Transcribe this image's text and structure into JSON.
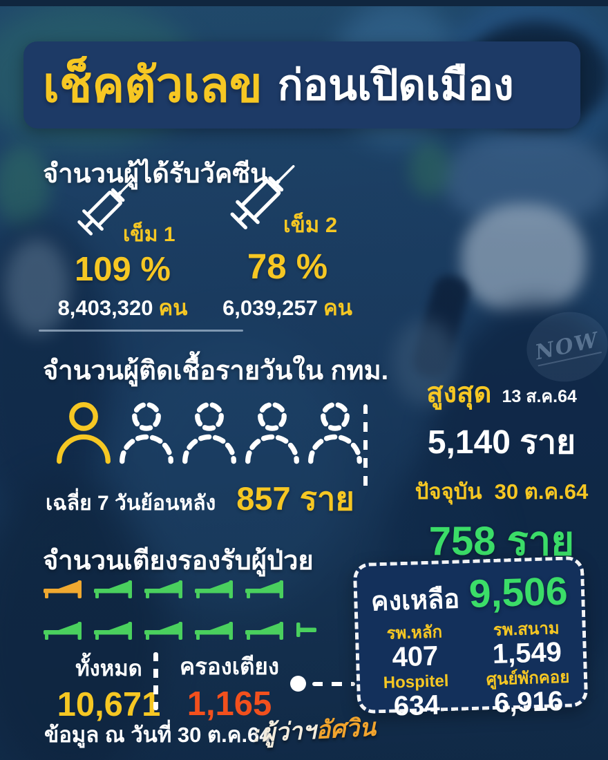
{
  "banner": {
    "title_highlight": "เช็คตัวเลข",
    "title_rest": "ก่อนเปิดเมือง"
  },
  "vaccine": {
    "heading": "จำนวนผู้ได้รับวัคซีน",
    "doses": [
      {
        "label": "เข็ม 1",
        "percent": "109 %",
        "count": "8,403,320",
        "unit": "คน"
      },
      {
        "label": "เข็ม 2",
        "percent": "78 %",
        "count": "6,039,257",
        "unit": "คน"
      }
    ]
  },
  "infections": {
    "heading": "จำนวนผู้ติดเชื้อรายวันใน กทม.",
    "pictogram": [
      "solid",
      "dashed",
      "dashed",
      "dashed",
      "dashed"
    ],
    "average_label": "เฉลี่ย 7 วันย้อนหลัง",
    "average_value": "857 ราย",
    "peak_label": "สูงสุด",
    "peak_date": "13 ส.ค.64",
    "peak_value": "5,140 ราย",
    "current_label": "ปัจจุบัน",
    "current_date": "30 ต.ค.64",
    "current_value": "758 ราย"
  },
  "beds": {
    "heading": "จำนวนเตียงรองรับผู้ป่วย",
    "pictogram_rows": [
      [
        "orange",
        "green",
        "green",
        "green",
        "green"
      ],
      [
        "green",
        "green",
        "green",
        "green",
        "green",
        "half"
      ]
    ],
    "total_label": "ทั้งหมด",
    "total_value": "10,671",
    "occupied_label": "ครองเตียง",
    "occupied_value": "1,165",
    "remaining_label": "คงเหลือ",
    "remaining_value": "9,506",
    "breakdown": [
      {
        "label": "รพ.หลัก",
        "value": "407"
      },
      {
        "label": "รพ.สนาม",
        "value": "1,549"
      },
      {
        "label": "Hospitel",
        "value": "634"
      },
      {
        "label": "ศูนย์พักคอย",
        "value": "6,916"
      }
    ]
  },
  "footer": {
    "data_date": "ข้อมูล ณ วันที่ 30 ต.ค.64",
    "signature_prefix": ":ผู้ว่าฯ",
    "signature_name": "อัศวิน"
  },
  "watermark": {
    "text": "NOW"
  },
  "colors": {
    "accent_yellow": "#f6c723",
    "accent_green": "#3bdd68",
    "accent_red": "#f2501d",
    "bed_green": "#4ad05e",
    "bed_orange": "#f0a930",
    "signature_orange": "#f2a42d",
    "box_navy": "#13305b"
  }
}
